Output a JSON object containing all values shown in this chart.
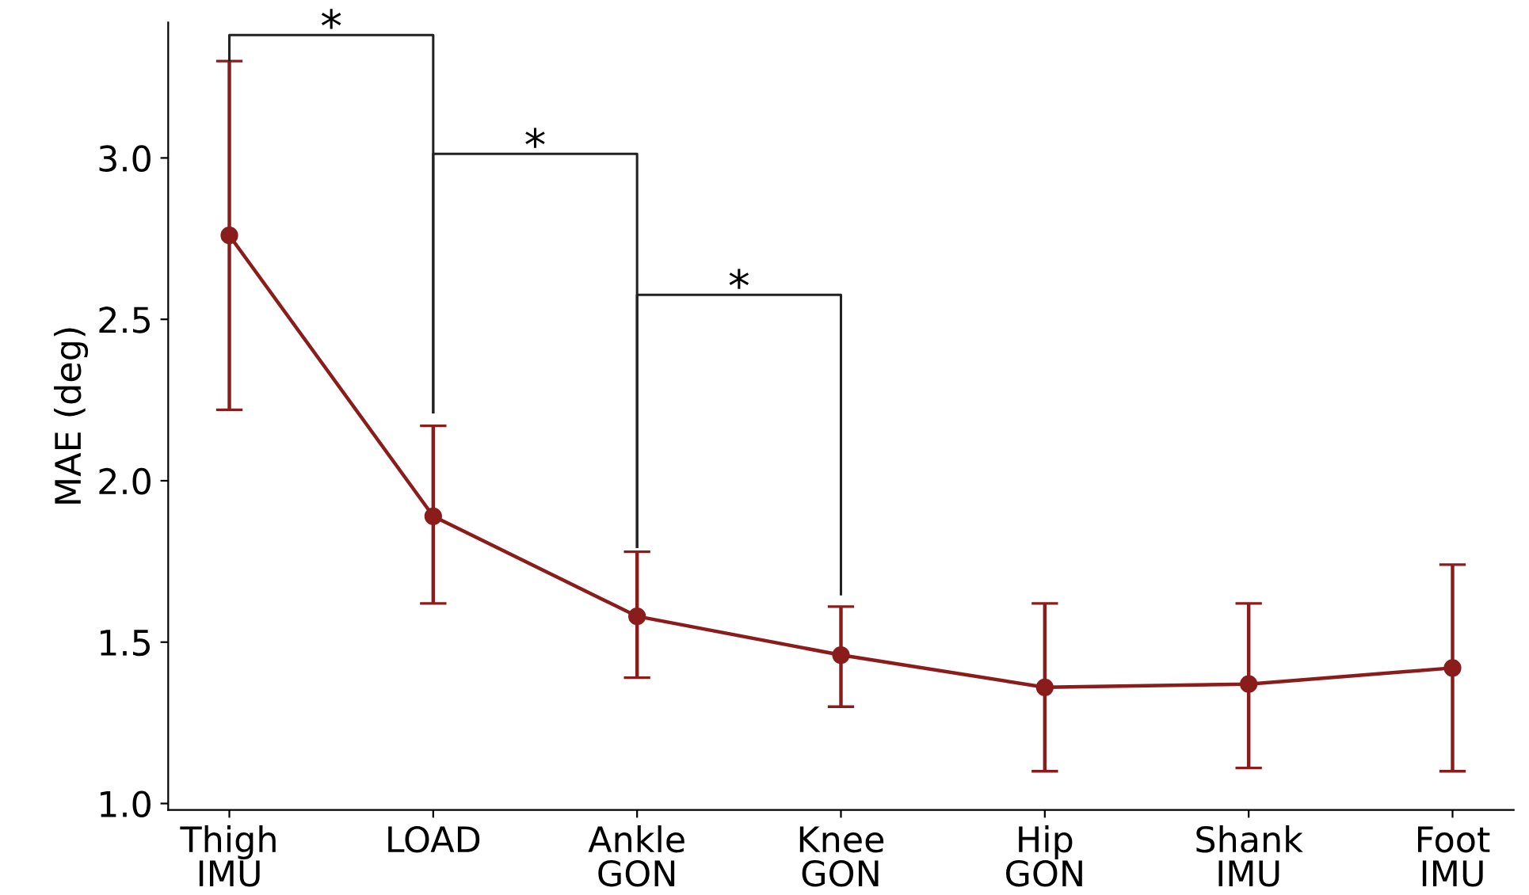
{
  "chart_data": {
    "type": "line",
    "ylabel": "MAE (deg)",
    "categories": [
      "Thigh\nIMU",
      "LOAD",
      "Ankle\nGON",
      "Knee\nGON",
      "Hip\nGON",
      "Shank\nIMU",
      "Foot\nIMU"
    ],
    "series": [
      {
        "color": "#8b1c1c",
        "values": [
          2.76,
          1.89,
          1.58,
          1.46,
          1.36,
          1.37,
          1.42
        ],
        "errors": [
          [
            2.22,
            3.3
          ],
          [
            1.62,
            2.17
          ],
          [
            1.39,
            1.78
          ],
          [
            1.3,
            1.61
          ],
          [
            1.1,
            1.62
          ],
          [
            1.11,
            1.62
          ],
          [
            1.1,
            1.74
          ]
        ]
      }
    ],
    "ylim": [
      0.98,
      3.42
    ],
    "yticks": [
      {
        "value": 1.0,
        "label": "1.0"
      },
      1.5,
      {
        "value": 2.0,
        "label": "2.0"
      },
      2.5,
      {
        "value": 3.0,
        "label": "3.0"
      }
    ],
    "marker": "circle",
    "line_style": "solid",
    "grid": false,
    "legend": false,
    "annotations": [
      "*",
      "*",
      "*"
    ]
  }
}
